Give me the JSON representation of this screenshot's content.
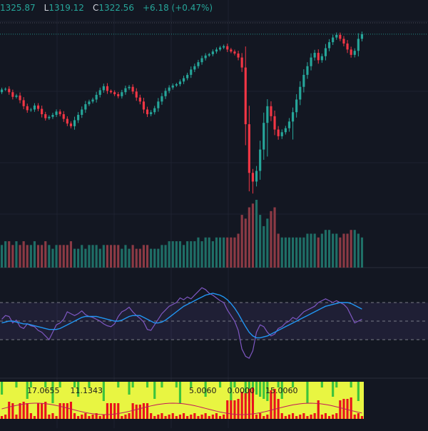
{
  "header": {
    "high_label": "",
    "high_value": "1325.87",
    "low_label": "L",
    "low_value": "1319.12",
    "close_label": "C",
    "close_value": "1322.56",
    "change": "+6.18 (+0.47%)"
  },
  "indicator_labels": [
    "17.0655",
    "11.1343",
    "5.0060",
    "0.0000",
    "15.0060"
  ],
  "colors": {
    "background": "#131722",
    "up": "#26a69a",
    "down": "#f23645",
    "volume_up": "#1f6f67",
    "volume_down": "#8c3a45",
    "rsi_line": "#7e57c2",
    "rsi_ma": "#2196f3",
    "rsi_band": "#7e57c2",
    "grid": "#1e2230",
    "indicator_yellow": "#e8f542",
    "indicator_green": "#3cc43c",
    "indicator_red": "#e8121c"
  },
  "chart_data": [
    {
      "type": "candlestick",
      "series": [
        {
          "name": "",
          "close": [
            1240,
            1241,
            1236,
            1229,
            1231,
            1224,
            1215,
            1209,
            1210,
            1216,
            1211,
            1203,
            1197,
            1199,
            1202,
            1207,
            1203,
            1196,
            1189,
            1185,
            1194,
            1202,
            1210,
            1218,
            1222,
            1225,
            1232,
            1239,
            1245,
            1238,
            1236,
            1233,
            1230,
            1236,
            1242,
            1244,
            1237,
            1228,
            1222,
            1210,
            1203,
            1206,
            1212,
            1222,
            1230,
            1238,
            1243,
            1246,
            1248,
            1252,
            1257,
            1262,
            1270,
            1275,
            1281,
            1287,
            1291,
            1293,
            1297,
            1300,
            1303,
            1305,
            1300,
            1297,
            1294,
            1288,
            1273,
            1188,
            1115,
            1102,
            1118,
            1150,
            1190,
            1215,
            1200,
            1180,
            1170,
            1176,
            1182,
            1192,
            1206,
            1225,
            1244,
            1262,
            1275,
            1288,
            1295,
            1284,
            1290,
            1302,
            1311,
            1318,
            1322,
            1316,
            1309,
            1300,
            1292,
            1298,
            1316,
            1323
          ],
          "open": [
            1236,
            1240,
            1241,
            1236,
            1229,
            1231,
            1224,
            1215,
            1209,
            1210,
            1216,
            1211,
            1203,
            1197,
            1199,
            1202,
            1207,
            1203,
            1196,
            1189,
            1185,
            1194,
            1202,
            1210,
            1218,
            1222,
            1225,
            1232,
            1239,
            1245,
            1238,
            1236,
            1233,
            1230,
            1236,
            1242,
            1244,
            1237,
            1228,
            1222,
            1210,
            1203,
            1206,
            1212,
            1222,
            1230,
            1238,
            1243,
            1246,
            1248,
            1252,
            1257,
            1262,
            1270,
            1275,
            1281,
            1287,
            1291,
            1293,
            1297,
            1300,
            1303,
            1305,
            1300,
            1297,
            1294,
            1288,
            1273,
            1188,
            1115,
            1102,
            1118,
            1150,
            1190,
            1215,
            1200,
            1180,
            1170,
            1176,
            1182,
            1192,
            1206,
            1225,
            1244,
            1262,
            1275,
            1288,
            1295,
            1284,
            1290,
            1302,
            1311,
            1318,
            1322,
            1316,
            1309,
            1300,
            1292,
            1298,
            1316
          ]
        }
      ],
      "grid": true
    },
    {
      "type": "bar",
      "title": "",
      "series": [
        {
          "name": "",
          "values": [
            6,
            7,
            7,
            6,
            7,
            6,
            7,
            6,
            6,
            7,
            6,
            6,
            7,
            6,
            5,
            6,
            6,
            6,
            6,
            7,
            5,
            5,
            6,
            5,
            6,
            6,
            6,
            5,
            6,
            6,
            6,
            6,
            6,
            5,
            6,
            5,
            6,
            5,
            5,
            6,
            6,
            5,
            5,
            5,
            6,
            6,
            7,
            7,
            7,
            7,
            6,
            7,
            7,
            7,
            8,
            7,
            8,
            8,
            7,
            8,
            8,
            8,
            8,
            8,
            8,
            9,
            14,
            13,
            16,
            17,
            18,
            14,
            11,
            13,
            15,
            16,
            9,
            8,
            8,
            8,
            8,
            8,
            8,
            8,
            9,
            9,
            9,
            8,
            9,
            10,
            10,
            9,
            9,
            8,
            9,
            9,
            10,
            10,
            9,
            8
          ]
        }
      ]
    },
    {
      "type": "line",
      "series": [
        {
          "name": "",
          "values": [
            52,
            56,
            55,
            48,
            51,
            44,
            42,
            47,
            45,
            44,
            40,
            38,
            34,
            30,
            38,
            46,
            48,
            52,
            60,
            58,
            56,
            58,
            61,
            57,
            55,
            54,
            52,
            50,
            47,
            45,
            44,
            47,
            55,
            60,
            62,
            65,
            60,
            56,
            53,
            49,
            41,
            40,
            46,
            52,
            58,
            62,
            66,
            68,
            70,
            75,
            73,
            76,
            74,
            78,
            82,
            86,
            84,
            80,
            78,
            75,
            72,
            70,
            62,
            56,
            50,
            40,
            20,
            12,
            10,
            18,
            38,
            46,
            44,
            38,
            34,
            36,
            42,
            44,
            48,
            50,
            54,
            52,
            56,
            60,
            62,
            64,
            66,
            70,
            72,
            74,
            72,
            70,
            72,
            70,
            68,
            64,
            56,
            48,
            50,
            52
          ]
        },
        {
          "name": "",
          "values": [
            48,
            49,
            50,
            50,
            49,
            48,
            47,
            47,
            46,
            45,
            44,
            43,
            42,
            41,
            41,
            41,
            42,
            44,
            46,
            48,
            50,
            52,
            54,
            55,
            55,
            55,
            55,
            54,
            53,
            52,
            51,
            50,
            50,
            51,
            53,
            55,
            56,
            56,
            56,
            54,
            52,
            50,
            48,
            48,
            49,
            51,
            54,
            57,
            60,
            63,
            66,
            68,
            70,
            72,
            74,
            76,
            78,
            79,
            80,
            79,
            78,
            76,
            73,
            69,
            64,
            58,
            51,
            44,
            38,
            34,
            32,
            32,
            33,
            34,
            36,
            38,
            40,
            42,
            44,
            46,
            48,
            50,
            52,
            54,
            56,
            58,
            60,
            62,
            64,
            66,
            67,
            68,
            69,
            70,
            70,
            70,
            69,
            67,
            65,
            63
          ]
        }
      ],
      "ylim": [
        0,
        100
      ],
      "grid": true
    },
    {
      "type": "heatmap",
      "title": ""
    }
  ]
}
